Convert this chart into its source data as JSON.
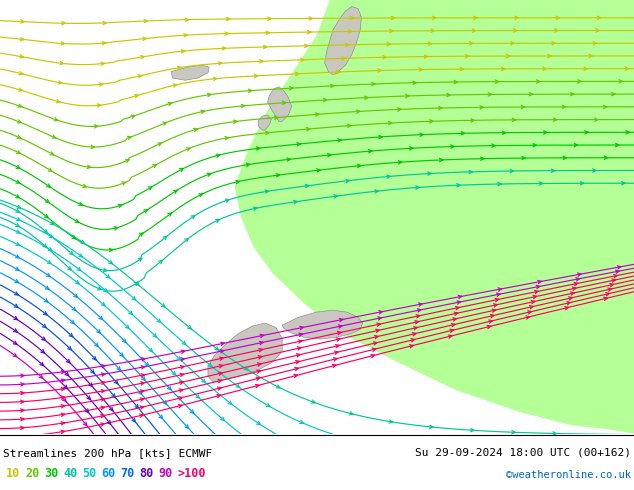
{
  "title_left": "Streamlines 200 hPa [kts] ECMWF",
  "title_right": "Su 29-09-2024 18:00 UTC (00+162)",
  "credit": "©weatheronline.co.uk",
  "legend_values": [
    "10",
    "20",
    "30",
    "40",
    "50",
    "60",
    "70",
    "80",
    "90",
    ">100"
  ],
  "legend_colors": [
    "#c8c800",
    "#64c800",
    "#00c800",
    "#00c864",
    "#00c8c8",
    "#0096c8",
    "#0064ff",
    "#6400c8",
    "#c800c8",
    "#ff0000"
  ],
  "bg_color": "#d8d8d8",
  "highlight_color": "#b4ffa0",
  "figsize": [
    6.34,
    4.9
  ],
  "dpi": 100,
  "speed_colors": {
    "10": "#c8c800",
    "20": "#64c800",
    "30": "#00c800",
    "40": "#00c8a0",
    "50": "#00c8c8",
    "60": "#0096ff",
    "70": "#0050ff",
    "80": "#6400c8",
    "90": "#c800c8",
    "100": "#ff0064"
  }
}
